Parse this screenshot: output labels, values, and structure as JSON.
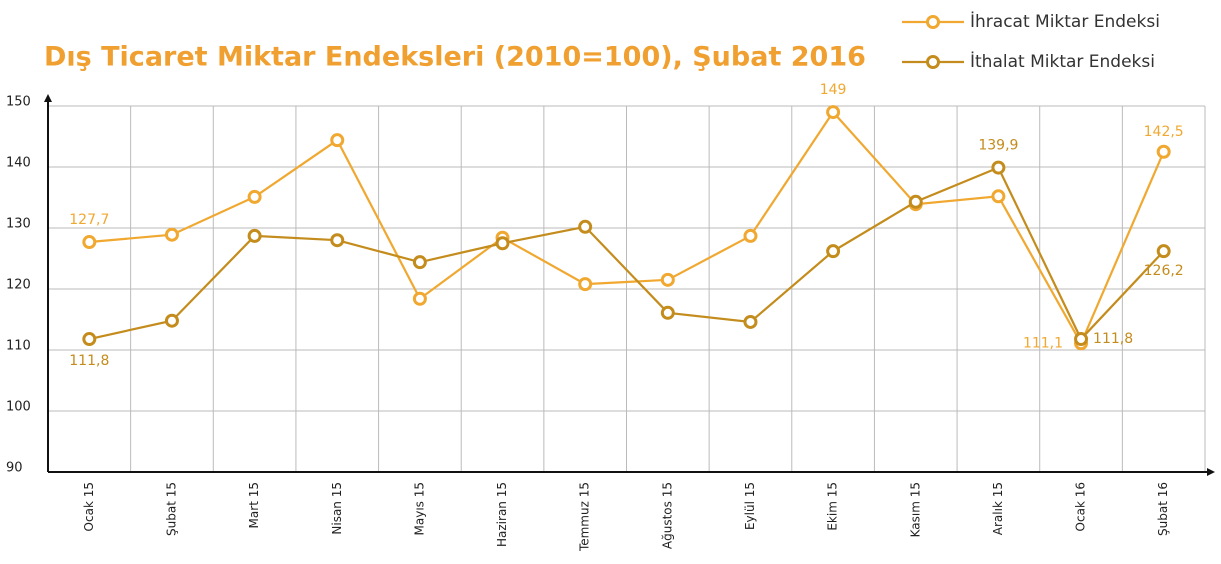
{
  "chart_data": {
    "type": "line",
    "title": "Dış Ticaret Miktar Endeksleri (2010=100), Şubat 2016",
    "categories": [
      "Ocak 15",
      "Şubat 15",
      "Mart 15",
      "Nisan 15",
      "Mayıs 15",
      "Haziran 15",
      "Temmuz 15",
      "Ağustos 15",
      "Eylül 15",
      "Ekim 15",
      "Kasım 15",
      "Aralık 15",
      "Ocak 16",
      "Şubat 16"
    ],
    "series": [
      {
        "name": "İhracat Miktar Endeksi",
        "color": "#f0a830",
        "values": [
          127.7,
          128.9,
          135.1,
          144.4,
          118.4,
          128.4,
          120.8,
          121.5,
          128.7,
          149,
          133.9,
          135.2,
          111.1,
          142.5
        ],
        "value_labels": [
          "127,7",
          null,
          null,
          null,
          null,
          null,
          null,
          null,
          null,
          "149",
          null,
          null,
          "111,1",
          "142,5"
        ]
      },
      {
        "name": "İthalat Miktar Endeksi",
        "color": "#c48c1c",
        "values": [
          111.8,
          114.8,
          128.7,
          128.0,
          124.4,
          127.5,
          130.2,
          116.1,
          114.6,
          126.2,
          134.3,
          139.9,
          111.8,
          126.2
        ],
        "value_labels": [
          "111,8",
          null,
          null,
          null,
          null,
          null,
          null,
          null,
          null,
          null,
          null,
          "139,9",
          "111,8",
          "126,2"
        ]
      }
    ],
    "ylim": [
      90,
      150
    ],
    "yticks": [
      90,
      100,
      110,
      120,
      130,
      140,
      150
    ],
    "grid": true,
    "legend": "top-right"
  }
}
